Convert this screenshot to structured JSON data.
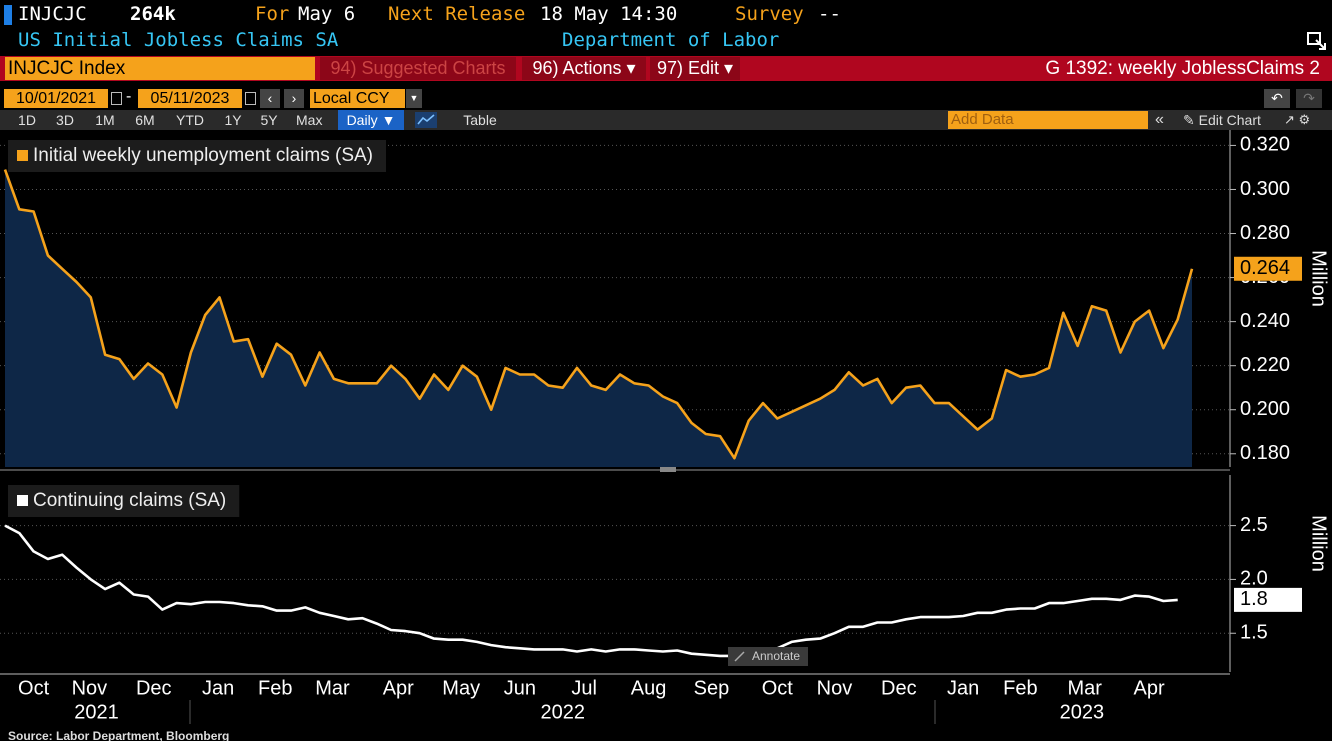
{
  "header": {
    "ticker": "INJCJC",
    "last": "264k",
    "for_label": "For",
    "for_value": "May 6",
    "next_label": "Next Release",
    "next_value": "18 May 14:30",
    "survey_label": "Survey",
    "survey_value": "--",
    "name": "US Initial Jobless Claims SA",
    "source_org": "Department of Labor"
  },
  "toolbar": {
    "security": "INJCJC Index",
    "suggested": "94) Suggested Charts",
    "actions": "96) Actions ▾",
    "edit": "97) Edit ▾",
    "chart_id": "G 1392: weekly JoblessClaims 2",
    "start_date": "10/01/2021",
    "date_sep": "-",
    "end_date": "05/11/2023",
    "currency": "Local CCY",
    "ranges": [
      "1D",
      "3D",
      "1M",
      "6M",
      "YTD",
      "1Y",
      "5Y",
      "Max"
    ],
    "frequency": "Daily ▼",
    "table": "Table",
    "add_data": "Add Data",
    "edit_chart": "Edit Chart"
  },
  "annotate": "Annotate",
  "source": "Source: Labor Department, Bloomberg",
  "chart_data": [
    {
      "type": "area",
      "y_label": "Million",
      "xlim": [
        0,
        83
      ],
      "ylim": [
        0.174,
        0.327
      ],
      "grid": true,
      "yticks": [
        {
          "value": 0.18,
          "label": "0.180"
        },
        {
          "value": 0.2,
          "label": "0.200"
        },
        {
          "value": 0.22,
          "label": "0.220"
        },
        {
          "value": 0.24,
          "label": "0.240"
        },
        {
          "value": 0.26,
          "label": "0.260"
        },
        {
          "value": 0.28,
          "label": "0.280"
        },
        {
          "value": 0.3,
          "label": "0.300"
        },
        {
          "value": 0.32,
          "label": "0.320"
        }
      ],
      "series": [
        {
          "name": "Initial weekly unemployment claims (SA)",
          "color": "#f5a21b",
          "last_label": "0.264",
          "values": [
            0.309,
            0.291,
            0.29,
            0.27,
            0.264,
            0.258,
            0.251,
            0.225,
            0.223,
            0.214,
            0.221,
            0.216,
            0.201,
            0.226,
            0.243,
            0.251,
            0.231,
            0.232,
            0.215,
            0.23,
            0.225,
            0.211,
            0.226,
            0.214,
            0.212,
            0.212,
            0.212,
            0.22,
            0.214,
            0.205,
            0.216,
            0.209,
            0.22,
            0.215,
            0.2,
            0.219,
            0.216,
            0.216,
            0.211,
            0.21,
            0.219,
            0.211,
            0.209,
            0.216,
            0.212,
            0.211,
            0.206,
            0.203,
            0.194,
            0.189,
            0.188,
            0.178,
            0.195,
            0.203,
            0.196,
            0.199,
            0.202,
            0.205,
            0.209,
            0.217,
            0.211,
            0.214,
            0.203,
            0.21,
            0.211,
            0.203,
            0.203,
            0.197,
            0.191,
            0.196,
            0.218,
            0.215,
            0.216,
            0.219,
            0.244,
            0.229,
            0.247,
            0.245,
            0.226,
            0.24,
            0.245,
            0.228,
            0.241,
            0.264
          ]
        }
      ]
    },
    {
      "type": "line",
      "y_label": "Million",
      "xlim": [
        0,
        83
      ],
      "ylim": [
        1.14,
        2.97
      ],
      "grid": true,
      "yticks": [
        1.5,
        {
          "value": 2,
          "label": "2.0"
        },
        2.5
      ],
      "xticks": [
        {
          "value": 2,
          "label": "Oct"
        },
        {
          "value": 5.9,
          "label": "Nov"
        },
        {
          "value": 10.4,
          "label": "Dec"
        },
        {
          "value": 14.9,
          "label": "Jan"
        },
        {
          "value": 18.9,
          "label": "Feb"
        },
        {
          "value": 22.9,
          "label": "Mar"
        },
        {
          "value": 27.5,
          "label": "Apr"
        },
        {
          "value": 31.9,
          "label": "May"
        },
        {
          "value": 36,
          "label": "Jun"
        },
        {
          "value": 40.5,
          "label": "Jul"
        },
        {
          "value": 45,
          "label": "Aug"
        },
        {
          "value": 49.4,
          "label": "Sep"
        },
        {
          "value": 54,
          "label": "Oct"
        },
        {
          "value": 58,
          "label": "Nov"
        },
        {
          "value": 62.5,
          "label": "Dec"
        },
        {
          "value": 67,
          "label": "Jan"
        },
        {
          "value": 71,
          "label": "Feb"
        },
        {
          "value": 75.5,
          "label": "Mar"
        },
        {
          "value": 80,
          "label": "Apr"
        }
      ],
      "year_ticks": [
        {
          "value": 6.4,
          "label": "2021"
        },
        {
          "value": 39,
          "label": "2022"
        },
        {
          "value": 75.3,
          "label": "2023"
        }
      ],
      "series": [
        {
          "name": "Continuing claims (SA)",
          "color": "#ffffff",
          "last_label": "1.8",
          "values": [
            2.5,
            2.43,
            2.26,
            2.19,
            2.23,
            2.11,
            2.0,
            1.91,
            1.97,
            1.86,
            1.84,
            1.72,
            1.78,
            1.77,
            1.79,
            1.79,
            1.78,
            1.76,
            1.75,
            1.71,
            1.71,
            1.74,
            1.69,
            1.66,
            1.63,
            1.64,
            1.59,
            1.53,
            1.52,
            1.5,
            1.45,
            1.44,
            1.44,
            1.42,
            1.39,
            1.37,
            1.36,
            1.35,
            1.35,
            1.35,
            1.33,
            1.35,
            1.33,
            1.35,
            1.35,
            1.34,
            1.33,
            1.34,
            1.31,
            1.3,
            1.29,
            1.29,
            1.29,
            1.32,
            1.36,
            1.42,
            1.44,
            1.45,
            1.5,
            1.56,
            1.56,
            1.6,
            1.6,
            1.63,
            1.65,
            1.65,
            1.65,
            1.66,
            1.69,
            1.69,
            1.72,
            1.73,
            1.73,
            1.78,
            1.78,
            1.8,
            1.82,
            1.82,
            1.81,
            1.85,
            1.84,
            1.8,
            1.81,
            null
          ]
        }
      ]
    }
  ]
}
